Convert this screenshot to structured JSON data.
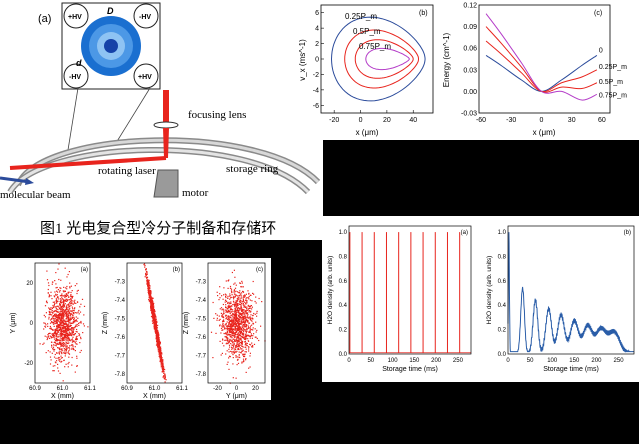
{
  "figure1": {
    "panel_label": "(a)",
    "labels": {
      "D": "D",
      "d": "d",
      "hv_pos_tl": "+HV",
      "hv_neg_tr": "-HV",
      "hv_neg_bl": "-HV",
      "hv_pos_br": "+HV",
      "focusing_lens": "focusing lens",
      "rotating_laser": "rotating laser",
      "storage_ring": "storage ring",
      "molecular_beam": "molecular beam",
      "motor": "motor"
    },
    "caption": "图1  光电复合型冷分子制备和存储环"
  },
  "colors": {
    "red": "#e8241d",
    "blue": "#2b4b9b",
    "magenta": "#b43cc8",
    "ring_outer": "#1a6fd0",
    "ring_mid": "#4c98e6",
    "ring_inner": "#8ec3f3",
    "ring_core": "#1542a8"
  },
  "chart_data": [
    {
      "id": "phase_space",
      "type": "line",
      "panel_label": "(b)",
      "xlabel": "x (μm)",
      "ylabel": "v_x (ms^-1)",
      "xlim": [
        -30,
        55
      ],
      "ylim": [
        -7,
        7
      ],
      "xticks": [
        "-20",
        "0",
        "20",
        "40"
      ],
      "yticks": [
        "-6",
        "-4",
        "-2",
        "0",
        "2",
        "4",
        "6"
      ],
      "curve_labels": [
        "0.25P_m",
        "0.5P_m",
        "0.75P_m"
      ]
    },
    {
      "id": "energy_potential",
      "type": "line",
      "panel_label": "(c)",
      "xlabel": "x (μm)",
      "ylabel": "Energy (cm^-1)",
      "xlim": [
        -62,
        68
      ],
      "ylim": [
        -0.03,
        0.12
      ],
      "xticks": [
        "-60",
        "-30",
        "0",
        "30",
        "60"
      ],
      "yticks": [
        "-0.03",
        "0.00",
        "0.03",
        "0.06",
        "0.09",
        "0.12"
      ],
      "series": [
        {
          "name": "0",
          "color": "#2b4b9b",
          "x": [
            -55,
            -40,
            -20,
            0,
            20,
            40,
            55
          ],
          "y": [
            0.05,
            0.036,
            0.016,
            0.0,
            0.016,
            0.036,
            0.05
          ]
        },
        {
          "name": "0.25P_m",
          "color": "#e8241d",
          "x": [
            -55,
            -40,
            -20,
            0,
            20,
            40,
            55
          ],
          "y": [
            0.07,
            0.052,
            0.026,
            0.0,
            0.012,
            0.02,
            0.03
          ]
        },
        {
          "name": "0.5P_m",
          "color": "#e8241d",
          "x": [
            -55,
            -40,
            -20,
            0,
            20,
            40,
            55
          ],
          "y": [
            0.09,
            0.067,
            0.034,
            0.0,
            0.006,
            0.004,
            0.012
          ]
        },
        {
          "name": "0.75P_m",
          "color": "#b43cc8",
          "x": [
            -55,
            -40,
            -20,
            0,
            20,
            40,
            55
          ],
          "y": [
            0.108,
            0.08,
            0.04,
            0.0,
            0.0,
            -0.012,
            -0.004
          ]
        }
      ]
    },
    {
      "id": "xy_distribution",
      "type": "scatter",
      "panel_label": "(a)",
      "xlabel": "X (mm)",
      "ylabel": "Y (μm)",
      "xlim": [
        60.9,
        61.1
      ],
      "ylim": [
        -30,
        30
      ],
      "xticks": [
        "60.9",
        "61.0",
        "61.1"
      ],
      "yticks": [
        "-20",
        "0",
        "20"
      ]
    },
    {
      "id": "xz_distribution",
      "type": "scatter",
      "panel_label": "(b)",
      "xlabel": "X (mm)",
      "ylabel": "Z (mm)",
      "xlim": [
        60.9,
        61.1
      ],
      "ylim": [
        -7.85,
        -7.2
      ],
      "xticks": [
        "60.9",
        "61.0",
        "61.1"
      ],
      "yticks": [
        "-7.8",
        "-7.7",
        "-7.6",
        "-7.5",
        "-7.4",
        "-7.3"
      ]
    },
    {
      "id": "yz_distribution",
      "type": "scatter",
      "panel_label": "(c)",
      "xlabel": "Y (μm)",
      "ylabel": "Z (mm)",
      "xlim": [
        -30,
        30
      ],
      "ylim": [
        -7.85,
        -7.2
      ],
      "xticks": [
        "-20",
        "0",
        "20"
      ],
      "yticks": [
        "-7.8",
        "-7.7",
        "-7.6",
        "-7.5",
        "-7.4",
        "-7.3"
      ]
    },
    {
      "id": "density_pulsed",
      "type": "line",
      "panel_label": "(a)",
      "xlabel": "Storage time (ms)",
      "ylabel": "H2O density (arb. units)",
      "xlim": [
        0,
        280
      ],
      "ylim": [
        0,
        1.05
      ],
      "xticks": [
        "0",
        "50",
        "100",
        "150",
        "200",
        "250"
      ],
      "yticks": [
        "0.0",
        "0.2",
        "0.4",
        "0.6",
        "0.8",
        "1.0"
      ],
      "peak_times": [
        2,
        30,
        58,
        86,
        114,
        142,
        170,
        198,
        226,
        254
      ]
    },
    {
      "id": "density_decay",
      "type": "line",
      "panel_label": "(b)",
      "xlabel": "Storage time (ms)",
      "ylabel": "H2O density (arb. units)",
      "xlim": [
        0,
        285
      ],
      "ylim": [
        0,
        1.05
      ],
      "xticks": [
        "0",
        "50",
        "100",
        "150",
        "200",
        "250"
      ],
      "yticks": [
        "0.0",
        "0.2",
        "0.4",
        "0.6",
        "0.8",
        "1.0"
      ],
      "peaks": [
        [
          2,
          1.0
        ],
        [
          33,
          0.54
        ],
        [
          62,
          0.44
        ],
        [
          92,
          0.37
        ],
        [
          120,
          0.32
        ],
        [
          150,
          0.27
        ],
        [
          180,
          0.23
        ],
        [
          210,
          0.2
        ],
        [
          240,
          0.18
        ]
      ]
    }
  ]
}
